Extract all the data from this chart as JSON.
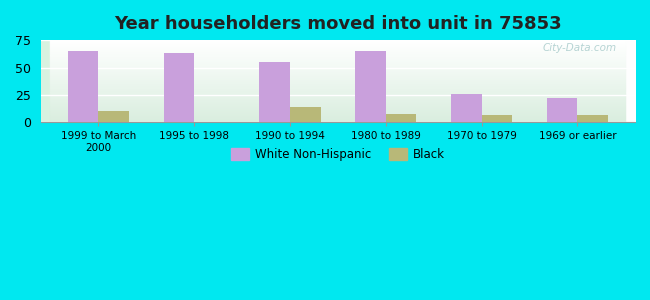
{
  "title": "Year householders moved into unit in 75853",
  "categories": [
    "1999 to March\n2000",
    "1995 to 1998",
    "1990 to 1994",
    "1980 to 1989",
    "1970 to 1979",
    "1969 or earlier"
  ],
  "white_values": [
    65,
    63,
    55,
    65,
    26,
    22
  ],
  "black_values": [
    10,
    0,
    14,
    8,
    7,
    7
  ],
  "white_color": "#c9a0dc",
  "black_color": "#b8b878",
  "ylim": [
    0,
    75
  ],
  "yticks": [
    0,
    25,
    50,
    75
  ],
  "bg_outer": "#00e8f0",
  "bar_width": 0.32,
  "title_fontsize": 13,
  "watermark": "City-Data.com"
}
